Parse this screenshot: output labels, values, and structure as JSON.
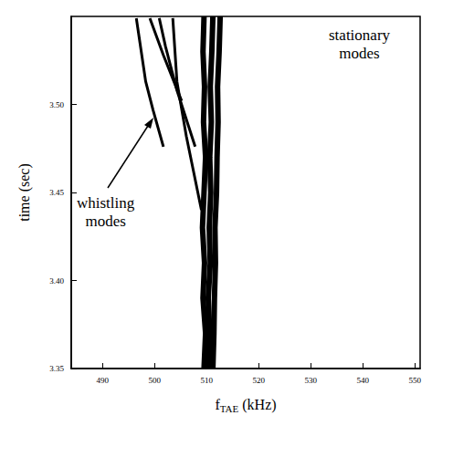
{
  "chart_data": {
    "type": "line",
    "xlabel": "fTAE (kHz)",
    "ylabel": "time (sec)",
    "xlim": [
      484,
      551
    ],
    "xticks": [
      490,
      500,
      510,
      520,
      530,
      540,
      550
    ],
    "ylim": [
      3.35,
      3.55
    ],
    "yticks": [
      3.35,
      {
        "value": 3.4,
        "label": "3.40"
      },
      3.45,
      {
        "value": 3.5,
        "label": "3.50"
      }
    ],
    "grid": false,
    "line_style": "solid",
    "annotations": [
      "whistling modes",
      "stationary modes"
    ],
    "series": [
      {
        "color": "#000000",
        "x": [
          509.5,
          509.8,
          509.3,
          509.6,
          509.2,
          509.5,
          509.8,
          509.4,
          509.6,
          509.3,
          509.5
        ],
        "values": [
          3.35,
          3.37,
          3.39,
          3.41,
          3.43,
          3.45,
          3.47,
          3.49,
          3.51,
          3.53,
          3.55
        ]
      },
      {
        "color": "#000000",
        "x": [
          510.4,
          510.6,
          510.3,
          510.7,
          510.5,
          510.8,
          510.6,
          510.9,
          510.7,
          511.0,
          511.2
        ],
        "values": [
          3.35,
          3.37,
          3.39,
          3.41,
          3.43,
          3.45,
          3.47,
          3.49,
          3.51,
          3.53,
          3.55
        ]
      },
      {
        "color": "#000000",
        "x": [
          511.2,
          511.4,
          511.5,
          511.7,
          511.6,
          511.9,
          512.0,
          512.2,
          512.1,
          512.4,
          512.6
        ],
        "values": [
          3.35,
          3.37,
          3.39,
          3.41,
          3.43,
          3.45,
          3.47,
          3.49,
          3.51,
          3.53,
          3.55
        ]
      },
      {
        "color": "#000000",
        "x": [
          509.0,
          506.1,
          504.3,
          503.5
        ],
        "values": [
          3.44,
          3.482,
          3.513,
          3.549
        ]
      },
      {
        "color": "#000000",
        "x": [
          507.8,
          504.3,
          502.1,
          500.9
        ],
        "values": [
          3.476,
          3.508,
          3.533,
          3.549
        ]
      },
      {
        "color": "#000000",
        "x": [
          505.2,
          501.7,
          499.1
        ],
        "values": [
          3.502,
          3.528,
          3.549
        ]
      },
      {
        "color": "#000000",
        "x": [
          501.7,
          499.7,
          498.3,
          496.5
        ],
        "values": [
          3.476,
          3.497,
          3.513,
          3.549
        ]
      }
    ]
  }
}
